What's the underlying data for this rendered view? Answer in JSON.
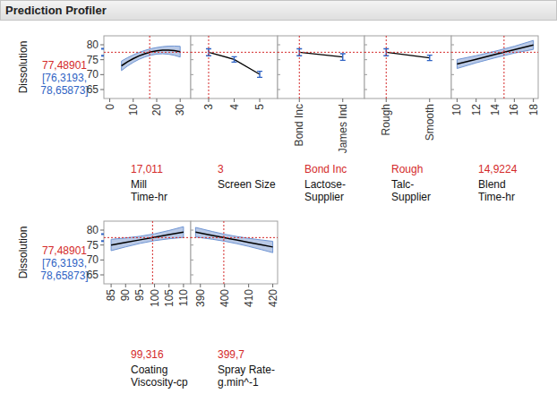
{
  "title": "Prediction Profiler",
  "response": {
    "name": "Dissolution",
    "value": {
      "value": 77.48901,
      "label": "77,48901"
    },
    "ci": [
      {
        "value": 76.3193,
        "label": "[76,3193,"
      },
      {
        "value": 78.65873,
        "label": "78,65873]"
      }
    ]
  },
  "chart_data": [
    {
      "type": "line",
      "xlabel": [
        "Mill",
        "Time-hr"
      ],
      "current": {
        "value": 17.011,
        "label": "17,011"
      },
      "xlim": [
        -2.5,
        34.5
      ],
      "xticks": [
        0,
        10,
        20,
        30
      ],
      "ylim": [
        62,
        83
      ],
      "yticks": [
        65,
        70,
        75,
        80
      ],
      "x": [
        5,
        7.5,
        10,
        12.5,
        15,
        17.5,
        20,
        22.5,
        25,
        27.5,
        30
      ],
      "values": [
        72.95,
        74.24,
        75.35,
        76.28,
        77.02,
        77.59,
        77.97,
        78.17,
        78.19,
        78.02,
        77.68
      ],
      "lower": [
        71.35,
        72.84,
        74.1,
        75.13,
        75.92,
        76.49,
        76.87,
        76.97,
        76.84,
        76.47,
        75.88
      ],
      "upper": [
        74.55,
        75.64,
        76.6,
        77.43,
        78.12,
        78.69,
        79.07,
        79.37,
        79.54,
        79.57,
        79.48
      ]
    },
    {
      "type": "point",
      "xlabel": [
        "Screen Size"
      ],
      "current": 3,
      "line_style": "solid",
      "xlim": [
        2.3,
        5.7
      ],
      "xticks": [
        3,
        4,
        5
      ],
      "ylim": [
        62,
        83
      ],
      "yticks": [
        65,
        70,
        75,
        80
      ],
      "tick_labels": "x",
      "x": [
        3,
        4,
        5
      ],
      "values": [
        77.49,
        75.1,
        70.1
      ],
      "errors": [
        1.17,
        0.9,
        1.0
      ]
    },
    {
      "type": "point",
      "xlabel": [
        "Lactose-",
        "Supplier"
      ],
      "current": "Bond Inc",
      "line_style": "solid",
      "ylim": [
        62,
        83
      ],
      "yticks": [
        65,
        70,
        75,
        80
      ],
      "tick_labels": "x",
      "categories": [
        "Bond Inc",
        "James Ind"
      ],
      "values": [
        77.49,
        75.9
      ],
      "errors": [
        1.17,
        1.1
      ]
    },
    {
      "type": "point",
      "xlabel": [
        "Talc-",
        "Supplier"
      ],
      "current": "Rough",
      "line_style": "solid",
      "ylim": [
        62,
        83
      ],
      "yticks": [
        65,
        70,
        75,
        80
      ],
      "tick_labels": "x",
      "categories": [
        "Rough",
        "Smooth"
      ],
      "values": [
        77.49,
        75.6
      ],
      "errors": [
        1.17,
        0.9
      ]
    },
    {
      "type": "line",
      "xlabel": [
        "Blend",
        "Time-hr"
      ],
      "current": {
        "value": 14.9224,
        "label": "14,9224"
      },
      "xlim": [
        9.4,
        18.5
      ],
      "xticks": [
        10,
        12,
        14,
        16,
        18
      ],
      "ylim": [
        62,
        83
      ],
      "yticks": [
        65,
        70,
        75,
        80
      ],
      "tick_labels": "x",
      "x": [
        10,
        12,
        14,
        16,
        18
      ],
      "values": [
        73.55,
        75.15,
        76.75,
        78.35,
        79.95
      ],
      "lower": [
        72.05,
        73.95,
        75.65,
        77.2,
        78.45
      ],
      "upper": [
        75.05,
        76.35,
        77.85,
        79.5,
        81.45
      ]
    },
    {
      "type": "line",
      "xlabel": [
        "Coating",
        "Viscosity-cp"
      ],
      "current": {
        "value": 99.316,
        "label": "99,316"
      },
      "xlim": [
        82.5,
        112.5
      ],
      "xticks": [
        85,
        90,
        95,
        100,
        105,
        110
      ],
      "ylim": [
        62,
        83
      ],
      "yticks": [
        65,
        70,
        75,
        80
      ],
      "x": [
        85,
        90,
        95,
        100,
        105,
        110
      ],
      "values": [
        75.0,
        75.87,
        76.74,
        77.61,
        78.48,
        79.35
      ],
      "lower": [
        73.1,
        74.37,
        75.54,
        76.46,
        77.08,
        77.55
      ],
      "upper": [
        76.9,
        77.37,
        77.94,
        78.76,
        79.88,
        81.15
      ]
    },
    {
      "type": "line",
      "xlabel": [
        "Spray Rate-",
        "g.min^-1"
      ],
      "current": {
        "value": 399.7,
        "label": "399,7"
      },
      "xlim": [
        386,
        422
      ],
      "xticks": [
        390,
        400,
        410,
        420
      ],
      "ylim": [
        62,
        83
      ],
      "yticks": [
        65,
        70,
        75,
        80
      ],
      "tick_labels": "x",
      "x": [
        388,
        395,
        400,
        405,
        410,
        415,
        420
      ],
      "values": [
        79.3,
        78.22,
        77.44,
        76.67,
        75.89,
        75.12,
        74.34
      ],
      "lower": [
        77.7,
        76.92,
        76.27,
        75.47,
        74.54,
        73.52,
        72.44
      ],
      "upper": [
        80.9,
        79.52,
        78.61,
        77.87,
        77.24,
        76.72,
        76.24
      ]
    }
  ]
}
